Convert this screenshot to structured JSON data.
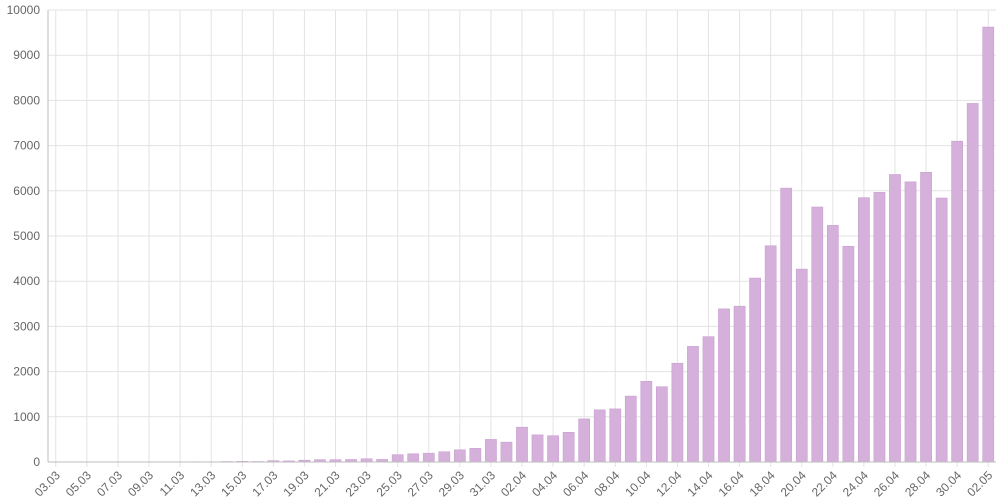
{
  "chart_data": {
    "type": "bar",
    "title": "",
    "xlabel": "",
    "ylabel": "",
    "ylim": [
      0,
      10000
    ],
    "yticks": [
      0,
      1000,
      2000,
      3000,
      4000,
      5000,
      6000,
      7000,
      8000,
      9000,
      10000
    ],
    "grid": true,
    "legend": "none",
    "bar_color": "#d4b0da",
    "bar_border_color": "#c79bcf",
    "categories": [
      "03.03",
      "04.03",
      "05.03",
      "06.03",
      "07.03",
      "08.03",
      "09.03",
      "10.03",
      "11.03",
      "12.03",
      "13.03",
      "14.03",
      "15.03",
      "16.03",
      "17.03",
      "18.03",
      "19.03",
      "20.03",
      "21.03",
      "22.03",
      "23.03",
      "24.03",
      "25.03",
      "26.03",
      "27.03",
      "28.03",
      "29.03",
      "30.03",
      "31.03",
      "01.04",
      "02.04",
      "03.04",
      "04.04",
      "05.04",
      "06.04",
      "07.04",
      "08.04",
      "09.04",
      "10.04",
      "11.04",
      "12.04",
      "13.04",
      "14.04",
      "15.04",
      "16.04",
      "17.04",
      "18.04",
      "19.04",
      "20.04",
      "21.04",
      "22.04",
      "23.04",
      "24.04",
      "25.04",
      "26.04",
      "27.04",
      "28.04",
      "29.04",
      "30.04",
      "01.05",
      "02.05"
    ],
    "tick_labels": [
      "03.03",
      "",
      "05.03",
      "",
      "07.03",
      "",
      "09.03",
      "",
      "11.03",
      "",
      "13.03",
      "",
      "15.03",
      "",
      "17.03",
      "",
      "19.03",
      "",
      "21.03",
      "",
      "23.03",
      "",
      "25.03",
      "",
      "27.03",
      "",
      "29.03",
      "",
      "31.03",
      "",
      "02.04",
      "",
      "04.04",
      "",
      "06.04",
      "",
      "08.04",
      "",
      "10.04",
      "",
      "12.04",
      "",
      "14.04",
      "",
      "16.04",
      "",
      "18.04",
      "",
      "20.04",
      "",
      "22.04",
      "",
      "24.04",
      "",
      "26.04",
      "",
      "28.04",
      "",
      "30.04",
      "",
      "02.05"
    ],
    "values": [
      3,
      0,
      2,
      0,
      0,
      3,
      0,
      0,
      1,
      6,
      6,
      11,
      14,
      11,
      30,
      24,
      41,
      53,
      52,
      56,
      71,
      57,
      163,
      182,
      196,
      228,
      270,
      302,
      500,
      440,
      771,
      601,
      582,
      658,
      954,
      1154,
      1175,
      1459,
      1786,
      1667,
      2186,
      2558,
      2774,
      3388,
      3448,
      4070,
      4785,
      6060,
      4268,
      5642,
      5236,
      4774,
      5849,
      5966,
      6361,
      6198,
      6411,
      5841,
      7099,
      7933,
      9623
    ]
  }
}
